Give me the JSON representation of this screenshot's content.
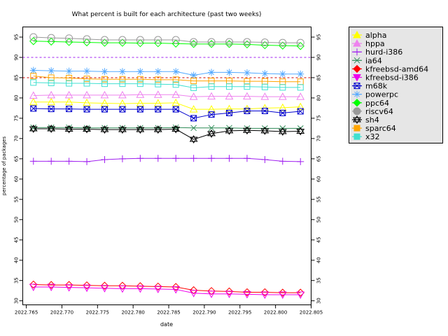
{
  "chart_data": {
    "type": "line",
    "title": "What percent is built for each architecture (past two weeks)",
    "xlabel": "date",
    "ylabel": "percentage of packages",
    "xlim": [
      2022.7645,
      2022.805
    ],
    "ylim": [
      29,
      97.5
    ],
    "xticks": [
      2022.765,
      2022.77,
      2022.775,
      2022.78,
      2022.785,
      2022.79,
      2022.795,
      2022.8,
      2022.805
    ],
    "xtick_labels": [
      "2022.765",
      "2022.770",
      "2022.775",
      "2022.780",
      "2022.785",
      "2022.790",
      "2022.795",
      "2022.800",
      "2022.805"
    ],
    "yticks": [
      30,
      35,
      40,
      45,
      50,
      55,
      60,
      65,
      70,
      75,
      80,
      85,
      90,
      95
    ],
    "ytick_labels": [
      "30",
      "35",
      "40",
      "45",
      "50",
      "55",
      "60",
      "65",
      "70",
      "75",
      "80",
      "85",
      "90",
      "95"
    ],
    "reference_lines": [
      {
        "y": 90,
        "color": "#a020f0"
      },
      {
        "y": 85,
        "color": "#cc0000"
      }
    ],
    "x": [
      2022.766,
      2022.7685,
      2022.771,
      2022.7735,
      2022.776,
      2022.7785,
      2022.781,
      2022.7835,
      2022.786,
      2022.7885,
      2022.791,
      2022.7935,
      2022.796,
      2022.7985,
      2022.801,
      2022.8035
    ],
    "legend_position": "right",
    "series": [
      {
        "name": "alpha",
        "color": "#ffff00",
        "marker": "triangle-up",
        "values": [
          79.0,
          79.0,
          79.0,
          78.8,
          78.7,
          78.6,
          78.7,
          78.7,
          78.8,
          77.2,
          77.2,
          77.3,
          77.3,
          77.5,
          77.6,
          77.8
        ]
      },
      {
        "name": "hppa",
        "color": "#ee82ee",
        "marker": "triangle-up",
        "values": [
          80.6,
          80.7,
          80.7,
          80.7,
          80.7,
          80.7,
          80.8,
          80.8,
          80.8,
          80.3,
          80.4,
          80.4,
          80.4,
          80.3,
          80.3,
          80.3
        ]
      },
      {
        "name": "hurd-i386",
        "color": "#a020f0",
        "marker": "plus",
        "values": [
          64.4,
          64.4,
          64.4,
          64.3,
          64.8,
          65.0,
          65.1,
          65.1,
          65.1,
          65.1,
          65.1,
          65.1,
          65.1,
          64.8,
          64.4,
          64.3
        ]
      },
      {
        "name": "ia64",
        "color": "#2e8b57",
        "marker": "x",
        "values": [
          72.7,
          72.7,
          72.7,
          72.6,
          72.6,
          72.6,
          72.6,
          72.6,
          72.7,
          72.6,
          72.6,
          72.6,
          72.5,
          72.5,
          72.5,
          72.5
        ]
      },
      {
        "name": "kfreebsd-amd64",
        "color": "#ff0000",
        "marker": "diamond",
        "values": [
          34.0,
          33.9,
          33.9,
          33.8,
          33.7,
          33.7,
          33.6,
          33.5,
          33.4,
          32.6,
          32.4,
          32.3,
          32.1,
          32.1,
          32.0,
          32.0
        ]
      },
      {
        "name": "kfreebsd-i386",
        "color": "#ee00ee",
        "marker": "triangle-down",
        "values": [
          33.4,
          33.4,
          33.3,
          33.2,
          33.1,
          33.0,
          33.0,
          32.9,
          32.8,
          31.9,
          31.7,
          31.7,
          31.6,
          31.5,
          31.5,
          31.5
        ]
      },
      {
        "name": "m68k",
        "color": "#0000cd",
        "marker": "square-x",
        "values": [
          77.4,
          77.3,
          77.3,
          77.2,
          77.2,
          77.2,
          77.2,
          77.2,
          77.2,
          75.0,
          75.9,
          76.3,
          76.8,
          76.8,
          76.3,
          76.7
        ]
      },
      {
        "name": "powerpc",
        "color": "#55aaff",
        "marker": "asterisk",
        "values": [
          86.8,
          86.7,
          86.6,
          86.6,
          86.5,
          86.5,
          86.5,
          86.5,
          86.5,
          85.6,
          86.3,
          86.3,
          86.2,
          86.0,
          85.9,
          85.9
        ]
      },
      {
        "name": "ppc64",
        "color": "#00ff00",
        "marker": "diamond",
        "values": [
          94.0,
          93.9,
          93.8,
          93.7,
          93.6,
          93.6,
          93.5,
          93.5,
          93.4,
          93.3,
          93.3,
          93.3,
          93.2,
          93.0,
          92.9,
          92.8
        ]
      },
      {
        "name": "riscv64",
        "color": "#999999",
        "marker": "circle",
        "values": [
          95.0,
          94.8,
          94.7,
          94.5,
          94.3,
          94.3,
          94.3,
          94.3,
          94.3,
          93.8,
          93.8,
          93.8,
          93.8,
          93.7,
          93.6,
          93.6
        ]
      },
      {
        "name": "sh4",
        "color": "#000000",
        "marker": "star",
        "values": [
          72.4,
          72.4,
          72.3,
          72.3,
          72.2,
          72.2,
          72.2,
          72.2,
          72.3,
          69.8,
          71.2,
          71.9,
          72.0,
          71.9,
          71.7,
          71.8
        ]
      },
      {
        "name": "sparc64",
        "color": "#ffa500",
        "marker": "square",
        "values": [
          85.4,
          85.0,
          84.9,
          84.7,
          84.6,
          84.6,
          84.6,
          84.5,
          84.5,
          84.2,
          84.2,
          84.2,
          84.1,
          84.1,
          84.0,
          84.0
        ]
      },
      {
        "name": "x32",
        "color": "#40e0d0",
        "marker": "square",
        "values": [
          83.8,
          83.7,
          83.6,
          83.6,
          83.5,
          83.5,
          83.5,
          83.4,
          83.3,
          82.5,
          82.8,
          82.8,
          82.8,
          82.7,
          82.6,
          82.6
        ]
      }
    ]
  }
}
